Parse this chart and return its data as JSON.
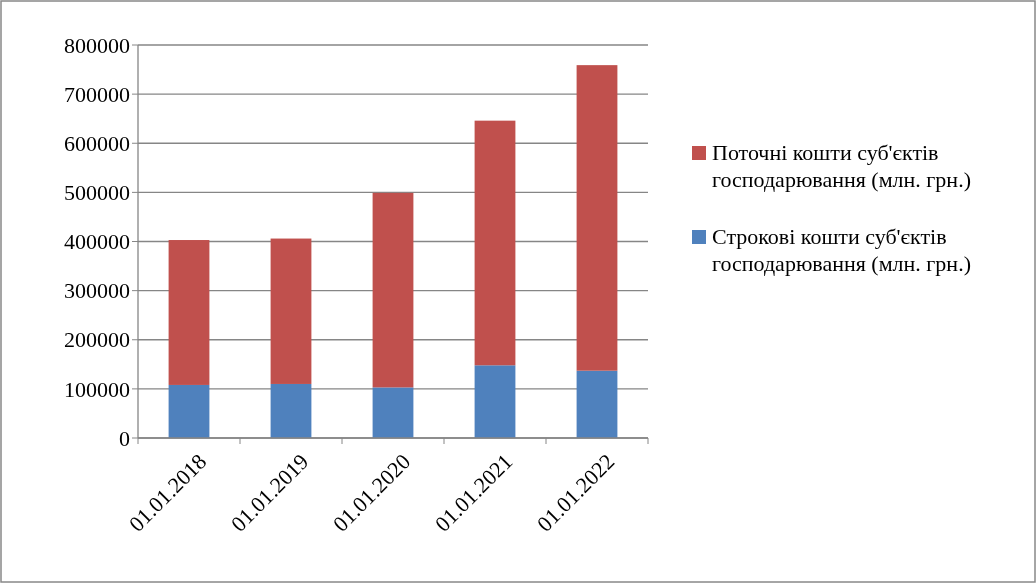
{
  "chart_data": {
    "type": "bar",
    "stacked": true,
    "categories": [
      "01.01.2018",
      "01.01.2019",
      "01.01.2020",
      "01.01.2021",
      "01.01.2022"
    ],
    "series": [
      {
        "name": "Строкові кошти суб'єктів господарювання (млн. грн.)",
        "color": "#4f81bd",
        "values": [
          108000,
          110000,
          103000,
          148000,
          137000
        ]
      },
      {
        "name": "Поточні кошти суб'єктів господарювання (млн. грн.)",
        "color": "#c0504d",
        "values": [
          295000,
          296000,
          396000,
          498000,
          622000
        ]
      }
    ],
    "ylim": [
      0,
      800000
    ],
    "yticks": [
      0,
      100000,
      200000,
      300000,
      400000,
      500000,
      600000,
      700000,
      800000
    ],
    "grid": "y",
    "legend": "right"
  }
}
